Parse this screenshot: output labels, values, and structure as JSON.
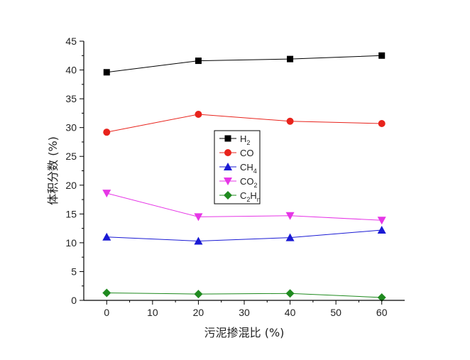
{
  "chart_data": {
    "type": "line",
    "xlabel": "污泥掺混比 (%)",
    "ylabel": "体积分数 (%)",
    "x": [
      0,
      20,
      40,
      60
    ],
    "xlim": [
      -5,
      65
    ],
    "ylim": [
      0,
      45
    ],
    "xticks": [
      0,
      10,
      20,
      30,
      40,
      50,
      60
    ],
    "yticks": [
      0,
      5,
      10,
      15,
      20,
      25,
      30,
      35,
      40,
      45
    ],
    "grid": false,
    "legend_position": "center",
    "series": [
      {
        "name": "H2",
        "label_main": "H",
        "label_sub": "2",
        "label_main2": "",
        "label_sub2": "",
        "marker": "square",
        "color": "#000000",
        "values": [
          39.6,
          41.6,
          41.9,
          42.5
        ]
      },
      {
        "name": "CO",
        "label_main": "CO",
        "label_sub": "",
        "label_main2": "",
        "label_sub2": "",
        "marker": "circle",
        "color": "#e8231c",
        "values": [
          29.2,
          32.3,
          31.1,
          30.7
        ]
      },
      {
        "name": "CH4",
        "label_main": "CH",
        "label_sub": "4",
        "label_main2": "",
        "label_sub2": "",
        "marker": "triangle-up",
        "color": "#1a1ad4",
        "values": [
          11.0,
          10.3,
          10.9,
          12.2
        ]
      },
      {
        "name": "CO2",
        "label_main": "CO",
        "label_sub": "2",
        "label_main2": "",
        "label_sub2": "",
        "marker": "triangle-down",
        "color": "#e636e6",
        "values": [
          18.6,
          14.5,
          14.7,
          13.9
        ]
      },
      {
        "name": "C2Hn",
        "label_main": "C",
        "label_sub": "2",
        "label_main2": "H",
        "label_sub2": "n",
        "marker": "diamond",
        "color": "#1f8a1f",
        "values": [
          1.3,
          1.1,
          1.2,
          0.5
        ]
      }
    ]
  }
}
